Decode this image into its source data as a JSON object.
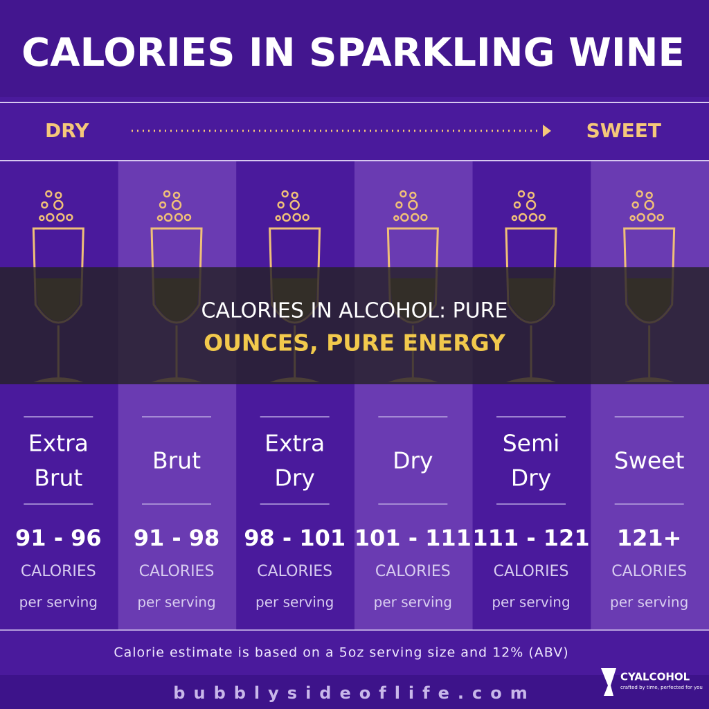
{
  "header": {
    "title": "CALORIES IN SPARKLING WINE"
  },
  "scale": {
    "start": "DRY",
    "end": "SWEET"
  },
  "columns": [
    {
      "name": [
        "Extra",
        "Brut"
      ],
      "calories": "91 - 96",
      "unit": "CALORIES",
      "per": "per serving"
    },
    {
      "name": [
        "Brut"
      ],
      "calories": "91 - 98",
      "unit": "CALORIES",
      "per": "per serving"
    },
    {
      "name": [
        "Extra",
        "Dry"
      ],
      "calories": "98 - 101",
      "unit": "CALORIES",
      "per": "per serving"
    },
    {
      "name": [
        "Dry"
      ],
      "calories": "101 - 111",
      "unit": "CALORIES",
      "per": "per serving"
    },
    {
      "name": [
        "Semi",
        "Dry"
      ],
      "calories": "111 - 121",
      "unit": "CALORIES",
      "per": "per serving"
    },
    {
      "name": [
        "Sweet"
      ],
      "calories": "121+",
      "unit": "CALORIES",
      "per": "per serving"
    }
  ],
  "footnote": "Calorie estimate is based on a 5oz serving size and 12% (ABV)",
  "website": "bubblysideoflife.com",
  "overlay": {
    "line1": "CALORIES IN ALCOHOL: PURE",
    "line2": "OUNCES, PURE ENERGY"
  },
  "logo": {
    "name": "CYALCOHOL",
    "tagline": "crafted by time, perfected for you"
  }
}
